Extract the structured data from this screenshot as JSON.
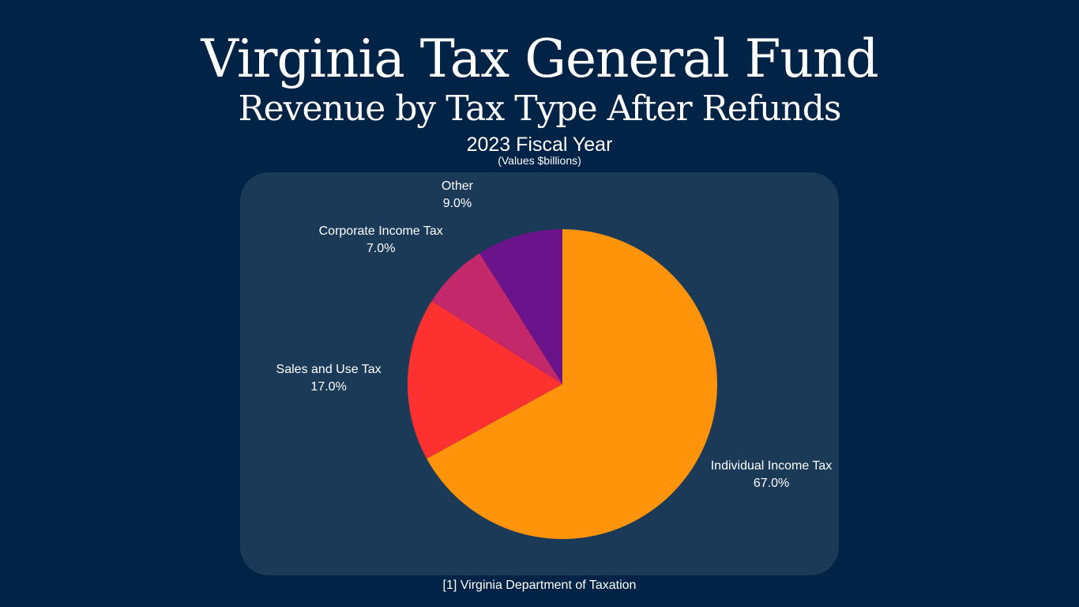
{
  "header": {
    "title": "Virginia Tax General Fund",
    "subtitle": "Revenue by Tax Type After Refunds",
    "fiscal_year": "2023 Fiscal Year",
    "units": "(Values $billions)"
  },
  "footer": {
    "source": "[1] Virginia Department of Taxation"
  },
  "chart_data": {
    "type": "pie",
    "title": "Virginia Tax General Fund Revenue by Tax Type After Refunds",
    "subtitle": "2023 Fiscal Year",
    "units": "(Values $billions)",
    "start_angle_deg": 0,
    "direction": "clockwise",
    "slices": [
      {
        "label": "Individual Income Tax",
        "value": 67.0,
        "display": "67.0%",
        "color": "#ff930a"
      },
      {
        "label": "Sales and Use Tax",
        "value": 17.0,
        "display": "17.0%",
        "color": "#fe3131"
      },
      {
        "label": "Corporate Income Tax",
        "value": 7.0,
        "display": "7.0%",
        "color": "#c3296a"
      },
      {
        "label": "Other",
        "value": 9.0,
        "display": "9.0%",
        "color": "#6a138a"
      }
    ],
    "legend": "none",
    "labels": "outside"
  }
}
